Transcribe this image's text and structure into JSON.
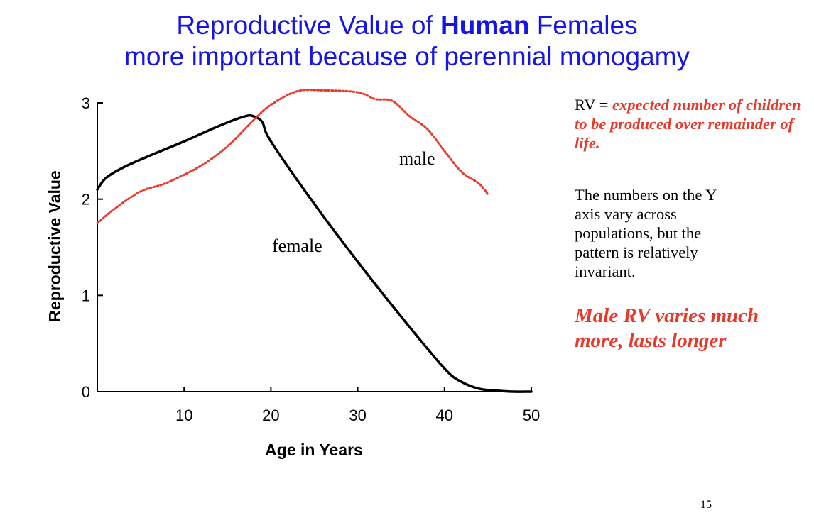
{
  "slide": {
    "title_line1_pre": "Reproductive Value of ",
    "title_line1_bold": "Human",
    "title_line1_post": " Females",
    "title_line2": "more important because of perennial monogamy",
    "rv_label": "RV = ",
    "rv_definition": "expected number of children to be produced over remainder of life.",
    "note": "The numbers on the Y axis vary across populations, but the pattern is relatively invariant.",
    "conclusion": "Male RV varies much more, lasts longer",
    "page_number": "15"
  },
  "colors": {
    "title": "#1515e6",
    "accent_red": "#e8392a",
    "female_line": "#000000",
    "male_line": "#e8392a"
  },
  "chart_data": {
    "type": "line",
    "title": "",
    "xlabel": "Age in Years",
    "ylabel": "Reproductive Value",
    "xlim": [
      0,
      50
    ],
    "ylim": [
      0,
      3
    ],
    "xticks": [
      10,
      20,
      30,
      40,
      50
    ],
    "yticks": [
      0,
      1,
      2,
      3
    ],
    "grid": false,
    "series": [
      {
        "name": "female",
        "style": "solid",
        "x": [
          0,
          1,
          3,
          6,
          10,
          14,
          17,
          18,
          19,
          20,
          25,
          30,
          35,
          40,
          42,
          44,
          46,
          48,
          50
        ],
        "y": [
          2.1,
          2.22,
          2.33,
          2.45,
          2.6,
          2.76,
          2.86,
          2.86,
          2.8,
          2.6,
          1.95,
          1.35,
          0.78,
          0.24,
          0.1,
          0.03,
          0.01,
          0.0,
          0.0
        ]
      },
      {
        "name": "male",
        "style": "dotted",
        "x": [
          0,
          2,
          5,
          8,
          12,
          15,
          18,
          20,
          23,
          26,
          30,
          32,
          34,
          36,
          38,
          40,
          42,
          44,
          45
        ],
        "y": [
          1.75,
          1.9,
          2.08,
          2.17,
          2.35,
          2.55,
          2.82,
          2.98,
          3.12,
          3.13,
          3.11,
          3.04,
          3.02,
          2.86,
          2.73,
          2.5,
          2.28,
          2.16,
          2.05
        ]
      }
    ]
  }
}
